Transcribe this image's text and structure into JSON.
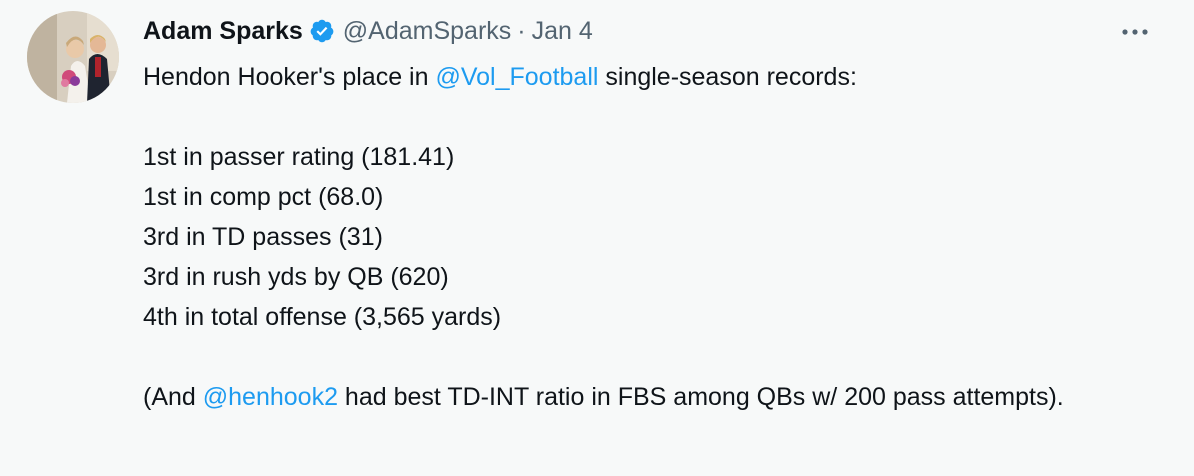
{
  "tweet": {
    "author": {
      "name": "Adam Sparks",
      "handle": "@AdamSparks",
      "separator": "·",
      "date": "Jan 4"
    },
    "paragraphs": [
      {
        "lines": [
          [
            {
              "text": "Hendon Hooker's place in "
            },
            {
              "text": "@Vol_Football",
              "link": true
            },
            {
              "text": " single-season records:"
            }
          ]
        ]
      },
      {
        "lines": [
          [
            {
              "text": "1st in passer rating (181.41)"
            }
          ],
          [
            {
              "text": "1st in comp pct (68.0)"
            }
          ],
          [
            {
              "text": "3rd in TD passes (31)"
            }
          ],
          [
            {
              "text": "3rd in rush yds by QB (620)"
            }
          ],
          [
            {
              "text": "4th in total offense (3,565 yards)"
            }
          ]
        ]
      },
      {
        "lines": [
          [
            {
              "text": "(And "
            },
            {
              "text": "@henhook2",
              "link": true
            },
            {
              "text": " had best TD-INT ratio in FBS among QBs w/ 200 pass attempts)."
            }
          ]
        ]
      }
    ]
  }
}
